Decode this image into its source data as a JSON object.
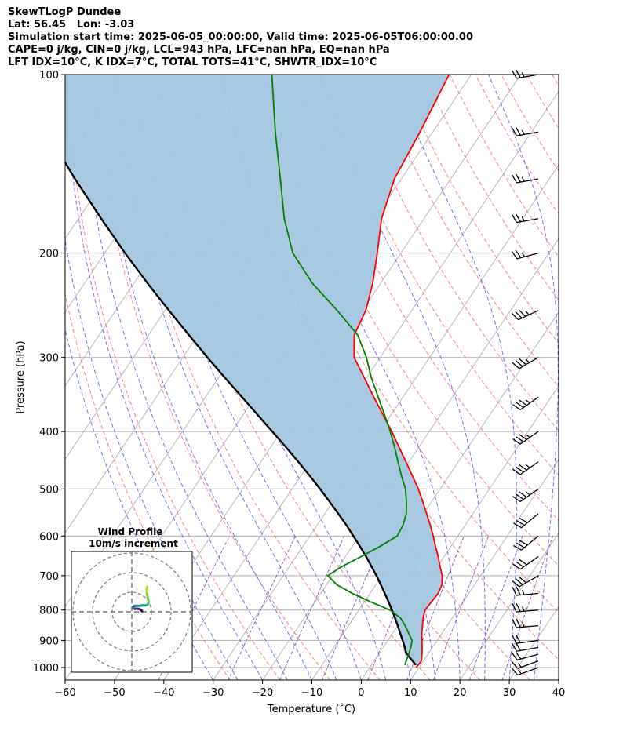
{
  "header": {
    "line1": "SkewTLogP Dundee",
    "line2": "Lat: 56.45   Lon: -3.03",
    "line3": "Simulation start time: 2025-06-05_00:00:00, Valid time: 2025-06-05T06:00:00.00",
    "line4": "CAPE=0 j/kg, CIN=0 j/kg, LCL=943 hPa, LFC=nan hPa, EQ=nan hPa",
    "line5": "LFT IDX=10°C, K IDX=7°C, TOTAL TOTS=41°C, SHWTR_IDX=10°C"
  },
  "colors": {
    "temperature": "#ff0000",
    "dewpoint": "#008000",
    "parcel": "#000000",
    "cape_fill": "#a3c6e0",
    "dry_adiabat": "#f07070",
    "moist_adiabat": "#5a5af0",
    "mixing_ratio": "#7b3fb0",
    "isotherm": "#b0b0b0",
    "grid": "#b0b0b0"
  },
  "chart_data": {
    "type": "line",
    "xlabel": "Temperature (˚C)",
    "ylabel": "Pressure (hPa)",
    "xlim": [
      -60,
      40
    ],
    "ylim": [
      1050,
      100
    ],
    "y_scale": "log",
    "x_ticks": [
      "−60",
      "−50",
      "−40",
      "−30",
      "−20",
      "−10",
      "0",
      "10",
      "20",
      "30",
      "40"
    ],
    "y_ticks": [
      "100",
      "200",
      "300",
      "400",
      "500",
      "600",
      "700",
      "800",
      "900",
      "1000"
    ],
    "grid": true,
    "series": [
      {
        "key": "temperature",
        "pressure": [
          1000,
          975,
          950,
          925,
          900,
          875,
          850,
          825,
          800,
          775,
          750,
          725,
          700,
          675,
          650,
          625,
          600,
          575,
          550,
          525,
          500,
          475,
          450,
          425,
          400,
          375,
          350,
          325,
          300,
          275,
          250,
          225,
          200,
          175,
          150,
          125,
          100
        ],
        "temperature": [
          9.4,
          9.6,
          8.8,
          7.9,
          6.9,
          5.9,
          5.0,
          4.1,
          3.4,
          3.6,
          3.8,
          3.4,
          2.2,
          0.5,
          -1.2,
          -3.1,
          -5.0,
          -7.1,
          -9.4,
          -11.8,
          -14.4,
          -17.4,
          -20.6,
          -24.0,
          -27.6,
          -31.6,
          -35.9,
          -40.4,
          -45.3,
          -48.3,
          -49.3,
          -51.6,
          -54.8,
          -58.6,
          -61.4,
          -62.6,
          -64.5
        ]
      },
      {
        "key": "dewpoint",
        "pressure": [
          990,
          975,
          950,
          925,
          900,
          875,
          850,
          825,
          800,
          775,
          750,
          725,
          700,
          675,
          650,
          625,
          600,
          575,
          550,
          525,
          500,
          475,
          450,
          425,
          400,
          375,
          350,
          325,
          300,
          275,
          250,
          225,
          200,
          175,
          150,
          125,
          100
        ],
        "dewpoint": [
          6.8,
          6.5,
          6.1,
          5.6,
          4.9,
          3.2,
          1.5,
          -0.5,
          -3.7,
          -8.7,
          -13.6,
          -17.9,
          -21.0,
          -19.3,
          -16.8,
          -14.4,
          -12.3,
          -12.6,
          -13.5,
          -15.1,
          -17.0,
          -19.6,
          -22.2,
          -24.9,
          -27.9,
          -31.3,
          -35.0,
          -39.0,
          -42.8,
          -47.6,
          -55.1,
          -63.8,
          -71.9,
          -78.3,
          -84.5,
          -91.9,
          -100.4
        ]
      },
      {
        "key": "parcel",
        "pressure": [
          990,
          975,
          950,
          943,
          925,
          900,
          875,
          850,
          825,
          800,
          775,
          750,
          725,
          700,
          675,
          650,
          625,
          600,
          575,
          550,
          525,
          500,
          475,
          450,
          425,
          400,
          375,
          350,
          325,
          300,
          275,
          250,
          225,
          200,
          175,
          150,
          125,
          100
        ],
        "temperature": [
          9.0,
          7.8,
          5.8,
          5.3,
          4.4,
          3.0,
          1.5,
          0.0,
          -1.6,
          -3.3,
          -5.1,
          -7.0,
          -9.0,
          -11.1,
          -13.4,
          -15.8,
          -18.4,
          -21.2,
          -24.1,
          -27.3,
          -30.7,
          -34.3,
          -38.2,
          -42.4,
          -46.9,
          -51.8,
          -57.0,
          -62.6,
          -68.6,
          -75.0,
          -81.8,
          -89.2,
          -97.2,
          -105.9,
          -115.4,
          -126.1,
          -138.2,
          -152.4
        ]
      }
    ],
    "wind_barbs": {
      "pressure": [
        1000,
        975,
        950,
        925,
        900,
        850,
        800,
        750,
        700,
        650,
        600,
        550,
        500,
        450,
        400,
        350,
        300,
        250,
        200,
        175,
        150,
        125,
        100
      ],
      "speed_kt": [
        15,
        15,
        20,
        20,
        20,
        25,
        25,
        25,
        30,
        30,
        30,
        30,
        35,
        35,
        35,
        35,
        35,
        35,
        25,
        25,
        25,
        25,
        25
      ],
      "direction_deg": [
        250,
        250,
        255,
        260,
        262,
        265,
        265,
        265,
        240,
        235,
        230,
        230,
        235,
        235,
        235,
        235,
        240,
        245,
        255,
        260,
        260,
        260,
        260
      ]
    },
    "hodograph": {
      "title": "Wind Profile",
      "subtitle": "10m/s increment",
      "ring_increment_ms": 10,
      "u": [
        5.2,
        5.0,
        4.6,
        4.0,
        3.2,
        2.2,
        1.4,
        0.9,
        0.8,
        0.9,
        1.3,
        2.0,
        3.0,
        4.2,
        5.5,
        6.8,
        7.8,
        8.3,
        8.6,
        8.4,
        8.0,
        7.6,
        7.6,
        7.8
      ],
      "v": [
        0.3,
        0.6,
        1.0,
        1.3,
        1.5,
        1.6,
        1.5,
        1.8,
        2.3,
        2.7,
        2.9,
        3.1,
        3.1,
        3.1,
        3.3,
        3.3,
        3.6,
        4.0,
        4.8,
        6.0,
        8.0,
        10.0,
        11.3,
        12.8
      ]
    }
  }
}
